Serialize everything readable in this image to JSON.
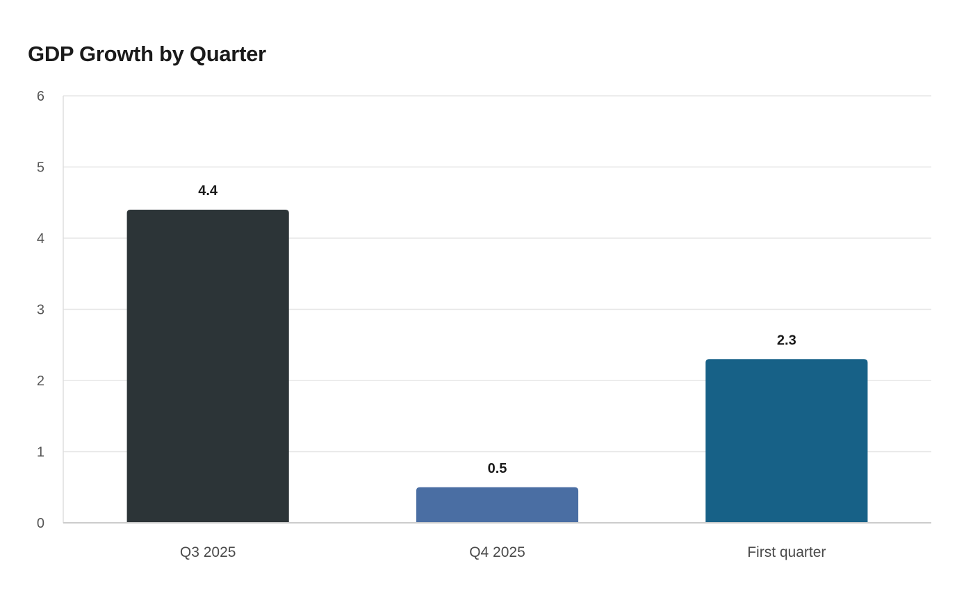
{
  "chart_data": {
    "type": "bar",
    "title": "GDP Growth by Quarter",
    "xlabel": "",
    "ylabel": "",
    "categories": [
      "Q3 2025",
      "Q4 2025",
      "First quarter"
    ],
    "values": [
      4.4,
      0.5,
      2.3
    ],
    "value_labels": [
      "4.4",
      "0.5",
      "2.3"
    ],
    "colors": [
      "#2c3437",
      "#4a6ea3",
      "#176187"
    ],
    "ylim": [
      0,
      6
    ],
    "yticks": [
      0,
      1,
      2,
      3,
      4,
      5,
      6
    ],
    "grid": true,
    "legend": "none"
  }
}
